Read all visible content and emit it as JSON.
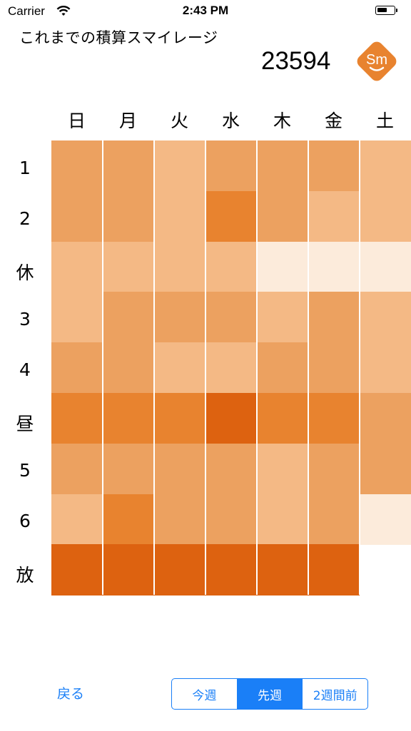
{
  "status_bar": {
    "carrier": "Carrier",
    "time": "2:43 PM"
  },
  "header": {
    "title": "これまでの積算スマイレージ",
    "score": "23594",
    "logo_text": "Sm",
    "logo_color": "#e8832f"
  },
  "days": [
    "日",
    "月",
    "火",
    "水",
    "木",
    "金",
    "土"
  ],
  "periods": [
    "1",
    "2",
    "休",
    "3",
    "4",
    "昼",
    "5",
    "6",
    "放"
  ],
  "colors": {
    "lightest": "#fcebdb",
    "light": "#f4b985",
    "medium": "#eca160",
    "strong": "#e8832f",
    "darkest": "#dd6210",
    "accent": "#1a7ff7"
  },
  "grid": [
    [
      "medium",
      "medium",
      "light",
      "medium",
      "medium",
      "medium",
      "light"
    ],
    [
      "medium",
      "medium",
      "light",
      "strong",
      "medium",
      "light",
      "light"
    ],
    [
      "light",
      "light",
      "light",
      "light",
      "lightest",
      "lightest",
      "lightest"
    ],
    [
      "light",
      "medium",
      "medium",
      "medium",
      "light",
      "medium",
      "light"
    ],
    [
      "medium",
      "medium",
      "light",
      "light",
      "medium",
      "medium",
      "light"
    ],
    [
      "strong",
      "strong",
      "strong",
      "darkest",
      "strong",
      "strong",
      "medium"
    ],
    [
      "medium",
      "medium",
      "medium",
      "medium",
      "light",
      "medium",
      "medium"
    ],
    [
      "light",
      "strong",
      "medium",
      "medium",
      "light",
      "medium",
      "lightest"
    ],
    [
      "darkest",
      "darkest",
      "darkest",
      "darkest",
      "darkest",
      "darkest",
      null
    ]
  ],
  "footer": {
    "back_label": "戻る",
    "segments": [
      "今週",
      "先週",
      "2週間前"
    ],
    "selected_segment": "先週"
  }
}
